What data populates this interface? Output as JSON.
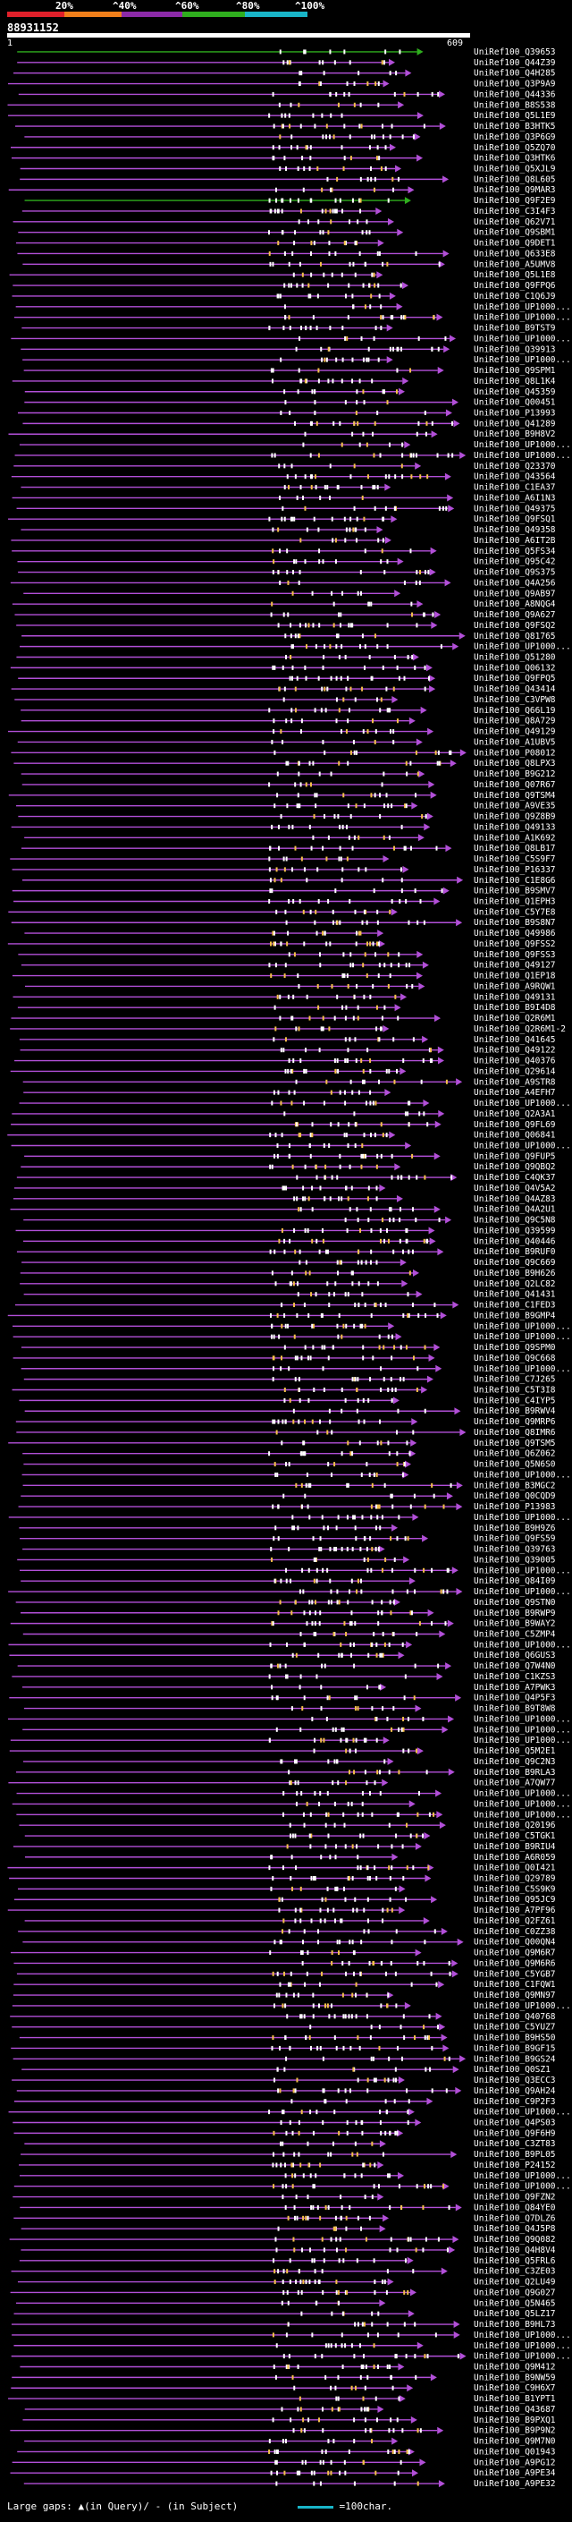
{
  "header": {
    "ticks": [
      "20%",
      "^40%",
      "^60%",
      "^80%",
      "^100%"
    ],
    "colors": [
      "#e0202a",
      "#f07f1a",
      "#8c2aa8",
      "#2fae1e",
      "#19b5c8"
    ],
    "query_id": "88931152",
    "start_pos": "1",
    "end_pos": "609"
  },
  "footer": {
    "gaps_text": "Large gaps: ▲(in Query)/ - (in Subject)",
    "scale_text": "=100char."
  },
  "chart_data": {
    "type": "alignment",
    "query_length": 609,
    "hits": [
      "UniRef100_Q39653",
      "UniRef100_Q44Z39",
      "UniRef100_Q4H285",
      "UniRef100_Q3P9A9",
      "UniRef100_Q44336",
      "UniRef100_B8S538",
      "UniRef100_Q5L1E9",
      "UniRef100_B3HTK5",
      "UniRef100_Q3P6G9",
      "UniRef100_Q5ZQ70",
      "UniRef100_Q3HTK6",
      "UniRef100_Q5XJL9",
      "UniRef100_Q8L605",
      "UniRef100_Q9MAR3",
      "UniRef100_Q9F2E9",
      "UniRef100_C3I4F3",
      "UniRef100_Q62V71",
      "UniRef100_Q9SBM1",
      "UniRef100_Q9DET1",
      "UniRef100_Q633E8",
      "UniRef100_A5UMV8",
      "UniRef100_Q5L1E8",
      "UniRef100_Q9FPQ6",
      "UniRef100_C1Q6J9",
      "UniRef100_UP1000...",
      "UniRef100_UP1000...",
      "UniRef100_B9TST9",
      "UniRef100_UP1000...",
      "UniRef100_Q39913",
      "UniRef100_UP1000...",
      "UniRef100_Q9SPM1",
      "UniRef100_Q8L1K4",
      "UniRef100_Q45359",
      "UniRef100_Q00451",
      "UniRef100_P13993",
      "UniRef100_Q41289",
      "UniRef100_B9H8V2",
      "UniRef100_UP1000...",
      "UniRef100_UP1000...",
      "UniRef100_Q23370",
      "UniRef100_Q43564",
      "UniRef100_C1EA37",
      "UniRef100_A6I1N3",
      "UniRef100_Q49375",
      "UniRef100_Q9FSQ1",
      "UniRef100_Q49358",
      "UniRef100_A6IT2B",
      "UniRef100_Q5FS34",
      "UniRef100_Q95C42",
      "UniRef100_Q9S375",
      "UniRef100_Q4A256",
      "UniRef100_Q9AB97",
      "UniRef100_A8NQG4",
      "UniRef100_Q9A627",
      "UniRef100_Q9FSQ2",
      "UniRef100_Q81765",
      "UniRef100_UP1000...",
      "UniRef100_Q51280",
      "UniRef100_Q06132",
      "UniRef100_Q9FPQ5",
      "UniRef100_Q43414",
      "UniRef100_C3VPW8",
      "UniRef100_Q66L19",
      "UniRef100_Q8A729",
      "UniRef100_Q49129",
      "UniRef100_A1UBV5",
      "UniRef100_P08012",
      "UniRef100_Q8LPX3",
      "UniRef100_B9G212",
      "UniRef100_Q07R67",
      "UniRef100_Q9TSM4",
      "UniRef100_A9VE35",
      "UniRef100_Q9Z8B9",
      "UniRef100_Q49133",
      "UniRef100_A1K692",
      "UniRef100_Q8LB17",
      "UniRef100_C5S9F7",
      "UniRef100_P16337",
      "UniRef100_C1E8G6",
      "UniRef100_B9SMV7",
      "UniRef100_Q1EPH3",
      "UniRef100_C5Y7E8",
      "UniRef100_B9S8N7",
      "UniRef100_Q49986",
      "UniRef100_Q9FSS2",
      "UniRef100_Q9FSS3",
      "UniRef100_Q49127",
      "UniRef100_Q1EP18",
      "UniRef100_A9RQW1",
      "UniRef100_Q49131",
      "UniRef100_B9I4D8",
      "UniRef100_Q2R6M1",
      "UniRef100_Q2R6M1-2",
      "UniRef100_Q41645",
      "UniRef100_Q49122",
      "UniRef100_Q40376",
      "UniRef100_Q29614",
      "UniRef100_A9STR8",
      "UniRef100_A4EFH7",
      "UniRef100_UP1000...",
      "UniRef100_Q2A3A1",
      "UniRef100_Q9FL69",
      "UniRef100_Q06841",
      "UniRef100_UP1000...",
      "UniRef100_Q9FUP5",
      "UniRef100_Q9QBQ2",
      "UniRef100_C4QK37",
      "UniRef100_Q4V5A2",
      "UniRef100_Q4AZ83",
      "UniRef100_Q4A2U1",
      "UniRef100_Q9C5N8",
      "UniRef100_Q39599",
      "UniRef100_Q40446",
      "UniRef100_B9RUF0",
      "UniRef100_Q9C669",
      "UniRef100_B9H626",
      "UniRef100_Q2LC82",
      "UniRef100_Q41431",
      "UniRef100_C1FED3",
      "UniRef100_B9GMP4",
      "UniRef100_UP1000...",
      "UniRef100_UP1000...",
      "UniRef100_Q9SPM0",
      "UniRef100_Q9C668",
      "UniRef100_UP1000...",
      "UniRef100_C7J265",
      "UniRef100_C5T3I8",
      "UniRef100_C4IYP5",
      "UniRef100_B9RWV4",
      "UniRef100_Q9MRP6",
      "UniRef100_Q8IMR6",
      "UniRef100_Q9TSM5",
      "UniRef100_Q6Z062",
      "UniRef100_Q5N6S0",
      "UniRef100_UP1000...",
      "UniRef100_B3MGC2",
      "UniRef100_Q0CQD9",
      "UniRef100_P13983",
      "UniRef100_UP1000...",
      "UniRef100_B9H9Z6",
      "UniRef100_Q9FS59",
      "UniRef100_Q39763",
      "UniRef100_Q39005",
      "UniRef100_UP1000...",
      "UniRef100_Q84I09",
      "UniRef100_UP1000...",
      "UniRef100_Q9STN0",
      "UniRef100_B9RWP9",
      "UniRef100_B9WAY2",
      "UniRef100_C5ZMP4",
      "UniRef100_UP1000...",
      "UniRef100_Q6GUS3",
      "UniRef100_Q7W4N0",
      "UniRef100_C1KZS3",
      "UniRef100_A7PWK3",
      "UniRef100_Q4P5F3",
      "UniRef100_B9T8W8",
      "UniRef100_UP1000...",
      "UniRef100_UP1000...",
      "UniRef100_UP1000...",
      "UniRef100_Q5M2E1",
      "UniRef100_Q9C2N3",
      "UniRef100_B9RLA3",
      "UniRef100_A7QW77",
      "UniRef100_UP1000...",
      "UniRef100_UP1000...",
      "UniRef100_UP1000...",
      "UniRef100_Q20196",
      "UniRef100_C5TGK1",
      "UniRef100_B9RIU4",
      "UniRef100_A6R059",
      "UniRef100_Q0I421",
      "UniRef100_Q29789",
      "UniRef100_C5S9K9",
      "UniRef100_Q95JC9",
      "UniRef100_A7PF96",
      "UniRef100_Q2FZ61",
      "UniRef100_C0ZZ38",
      "UniRef100_Q00QN4",
      "UniRef100_Q9M6R7",
      "UniRef100_Q9M6R6",
      "UniRef100_C5YGB7",
      "UniRef100_C1FQW1",
      "UniRef100_Q9MN97",
      "UniRef100_UP1000...",
      "UniRef100_Q40768",
      "UniRef100_C5YUZ7",
      "UniRef100_B9HS50",
      "UniRef100_B9GF15",
      "UniRef100_B9GS24",
      "UniRef100_Q0SZ1",
      "UniRef100_Q3ECC3",
      "UniRef100_Q9AH24",
      "UniRef100_C9P2F3",
      "UniRef100_UP1000...",
      "UniRef100_Q4PS03",
      "UniRef100_Q9F6H9",
      "UniRef100_C3ZT83",
      "UniRef100_B9PL05",
      "UniRef100_P24152",
      "UniRef100_UP1000...",
      "UniRef100_UP1000...",
      "UniRef100_Q9FZN2",
      "UniRef100_Q84YE0",
      "UniRef100_Q7DLZ6",
      "UniRef100_Q4J5P8",
      "UniRef100_Q9Q082",
      "UniRef100_Q4H8V4",
      "UniRef100_Q5FRL6",
      "UniRef100_C3ZE03",
      "UniRef100_Q2LU49",
      "UniRef100_Q9G027",
      "UniRef100_Q5N465",
      "UniRef100_Q5LZ17",
      "UniRef100_B9HL73",
      "UniRef100_UP1000...",
      "UniRef100_UP1000...",
      "UniRef100_UP1000...",
      "UniRef100_Q9M412",
      "UniRef100_B9NW59",
      "UniRef100_C9H6X7",
      "UniRef100_B1YPT1",
      "UniRef100_Q43687",
      "UniRef100_B9PXQ1",
      "UniRef100_B9P9N2",
      "UniRef100_Q9M7N0",
      "UniRef100_Q01943",
      "UniRef100_A9PG12",
      "UniRef100_A9PE34",
      "UniRef100_A9PE32"
    ]
  }
}
